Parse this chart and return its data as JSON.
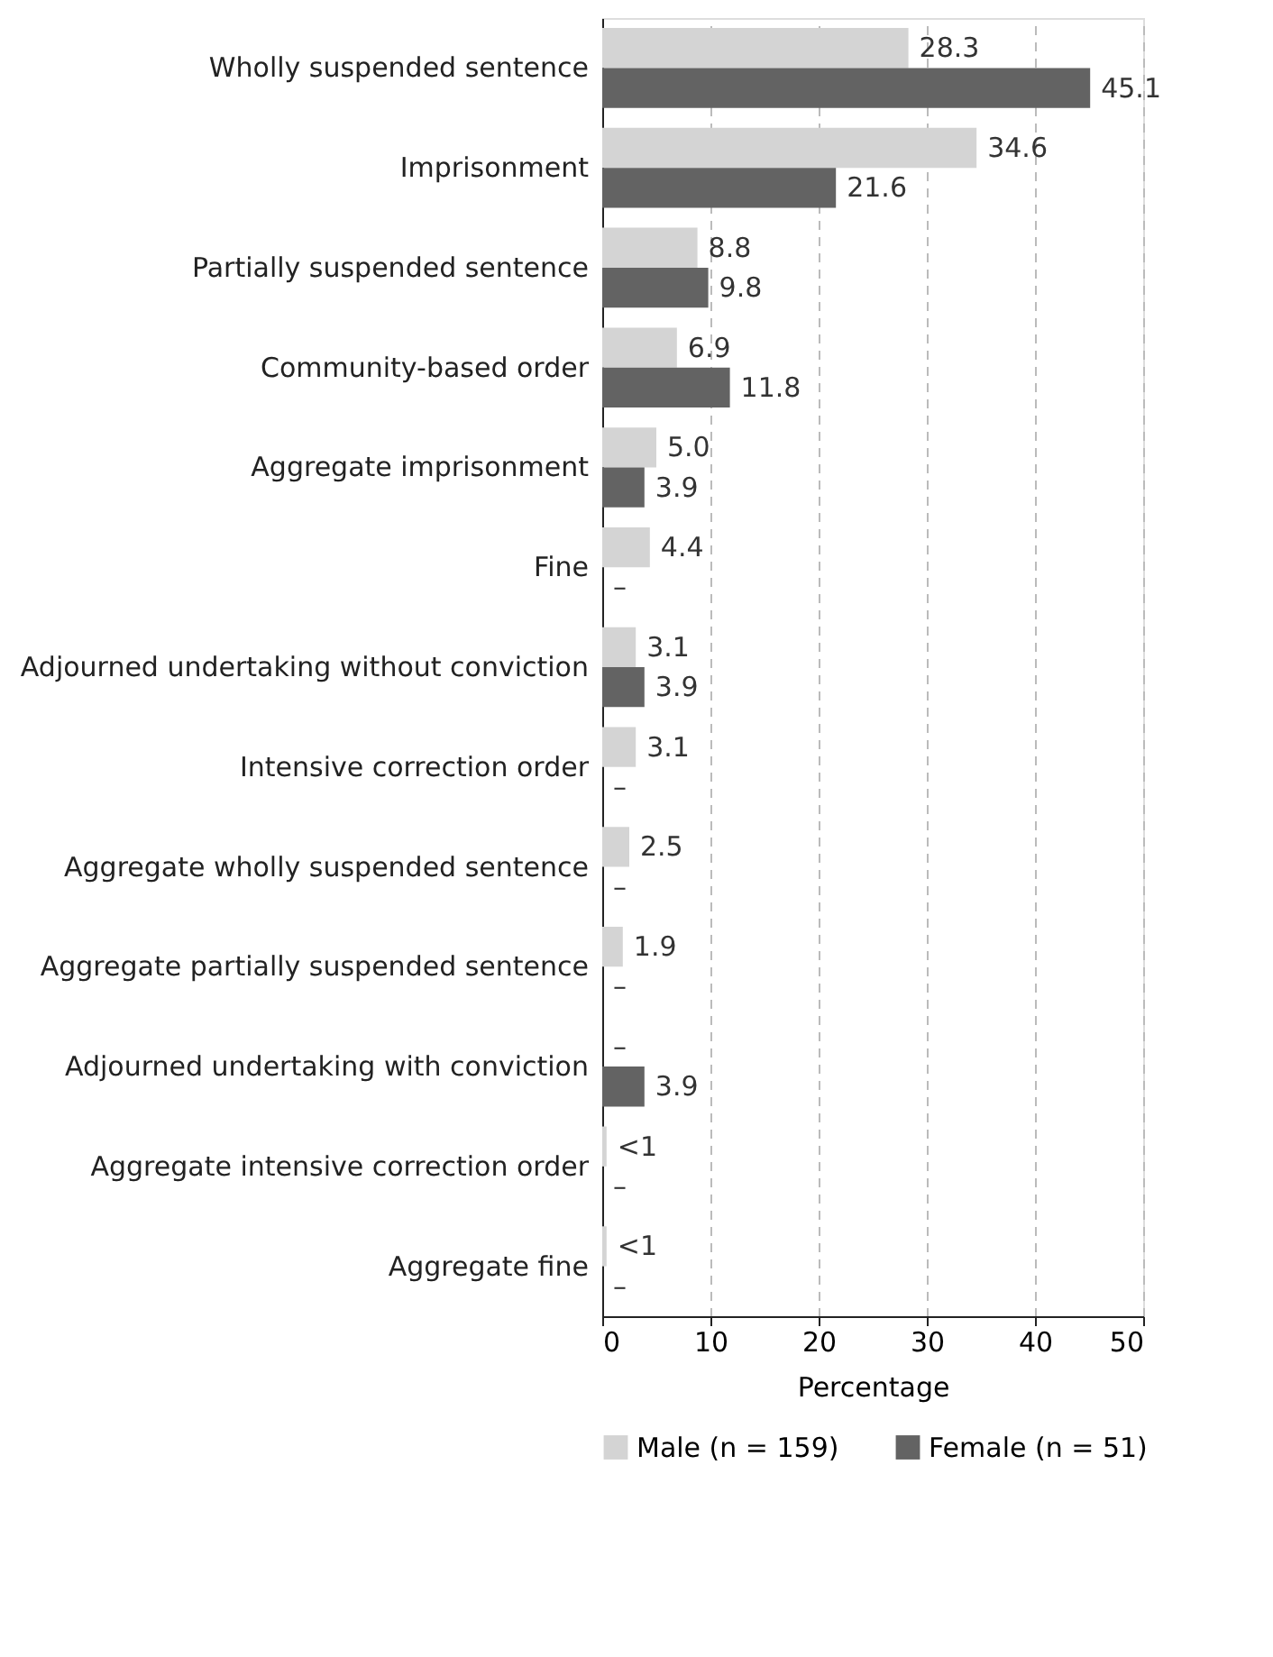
{
  "chart_data": {
    "type": "bar",
    "orientation": "horizontal",
    "xlabel": "Percentage",
    "categories": [
      "Wholly suspended sentence",
      "Imprisonment",
      "Partially suspended sentence",
      "Community-based order",
      "Aggregate imprisonment",
      "Fine",
      "Adjourned undertaking without conviction",
      "Intensive correction order",
      "Aggregate wholly suspended sentence",
      "Aggregate partially suspended sentence",
      "Adjourned undertaking with conviction",
      "Aggregate intensive correction order",
      "Aggregate fine"
    ],
    "series": [
      {
        "name": "Male (n = 159)",
        "color": "#d4d4d4",
        "values": [
          28.3,
          34.6,
          8.8,
          6.9,
          5.0,
          4.4,
          3.1,
          3.1,
          2.5,
          1.9,
          0,
          0.4,
          0.4
        ],
        "value_labels": [
          "28.3",
          "34.6",
          "8.8",
          "6.9",
          "5.0",
          "4.4",
          "3.1",
          "3.1",
          "2.5",
          "1.9",
          "–",
          "<1",
          "<1"
        ]
      },
      {
        "name": "Female (n = 51)",
        "color": "#636363",
        "values": [
          45.1,
          21.6,
          9.8,
          11.8,
          3.9,
          0,
          3.9,
          0,
          0,
          0,
          3.9,
          0,
          0
        ],
        "value_labels": [
          "45.1",
          "21.6",
          "9.8",
          "11.8",
          "3.9",
          "–",
          "3.9",
          "–",
          "–",
          "–",
          "3.9",
          "–",
          "–"
        ]
      }
    ],
    "xlim": [
      0,
      50
    ],
    "xticks": [
      0,
      10,
      20,
      30,
      40,
      50
    ],
    "grid": "x",
    "legend": "bottom"
  }
}
